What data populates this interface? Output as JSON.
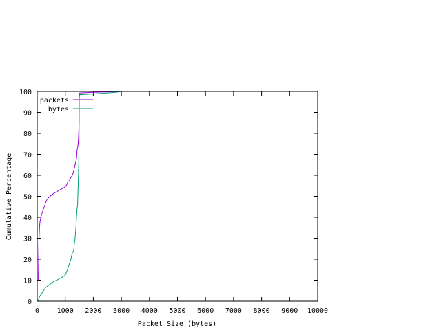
{
  "chart_data": {
    "type": "line",
    "title": "",
    "xlabel": "Packet Size (bytes)",
    "ylabel": "Cumulative Percentage",
    "xlim": [
      0,
      10000
    ],
    "ylim": [
      0,
      100
    ],
    "x_ticks": [
      0,
      1000,
      2000,
      3000,
      4000,
      5000,
      6000,
      7000,
      8000,
      9000,
      10000
    ],
    "y_ticks": [
      0,
      10,
      20,
      30,
      40,
      50,
      60,
      70,
      80,
      90,
      100
    ],
    "grid": false,
    "legend_position": "top-left",
    "series": [
      {
        "name": "packets",
        "color": "#9400d3",
        "points": [
          [
            40,
            10
          ],
          [
            40,
            12
          ],
          [
            50,
            20
          ],
          [
            60,
            28
          ],
          [
            80,
            35
          ],
          [
            100,
            38
          ],
          [
            150,
            41
          ],
          [
            200,
            43
          ],
          [
            250,
            45
          ],
          [
            300,
            47
          ],
          [
            350,
            48.5
          ],
          [
            400,
            49.3
          ],
          [
            500,
            50.5
          ],
          [
            600,
            51.5
          ],
          [
            700,
            52.2
          ],
          [
            800,
            53
          ],
          [
            900,
            53.7
          ],
          [
            1000,
            54.5
          ],
          [
            1050,
            55.5
          ],
          [
            1100,
            57
          ],
          [
            1150,
            57.5
          ],
          [
            1200,
            59
          ],
          [
            1250,
            60
          ],
          [
            1300,
            62
          ],
          [
            1350,
            65
          ],
          [
            1400,
            68
          ],
          [
            1420,
            72
          ],
          [
            1440,
            73
          ],
          [
            1460,
            75
          ],
          [
            1480,
            80
          ],
          [
            1490,
            85
          ],
          [
            1500,
            99
          ],
          [
            1520,
            99.3
          ],
          [
            2000,
            99.6
          ],
          [
            2500,
            99.8
          ],
          [
            3000,
            100
          ]
        ]
      },
      {
        "name": "bytes",
        "color": "#009e73",
        "points": [
          [
            40,
            0
          ],
          [
            50,
            1
          ],
          [
            80,
            2
          ],
          [
            100,
            2.5
          ],
          [
            150,
            3.5
          ],
          [
            200,
            4.5
          ],
          [
            250,
            5.5
          ],
          [
            300,
            6.5
          ],
          [
            350,
            7
          ],
          [
            400,
            7.5
          ],
          [
            500,
            8.5
          ],
          [
            600,
            9.5
          ],
          [
            700,
            10
          ],
          [
            800,
            10.8
          ],
          [
            900,
            11.5
          ],
          [
            1000,
            12.5
          ],
          [
            1050,
            14
          ],
          [
            1100,
            16
          ],
          [
            1150,
            18
          ],
          [
            1200,
            20
          ],
          [
            1250,
            23
          ],
          [
            1300,
            24
          ],
          [
            1320,
            27
          ],
          [
            1350,
            30
          ],
          [
            1380,
            35
          ],
          [
            1400,
            40
          ],
          [
            1420,
            44
          ],
          [
            1440,
            46
          ],
          [
            1460,
            55
          ],
          [
            1480,
            65
          ],
          [
            1490,
            75
          ],
          [
            1500,
            97
          ],
          [
            1520,
            98.5
          ],
          [
            2000,
            98.8
          ],
          [
            2500,
            99.3
          ],
          [
            2800,
            99.6
          ],
          [
            3000,
            100
          ]
        ]
      }
    ]
  }
}
